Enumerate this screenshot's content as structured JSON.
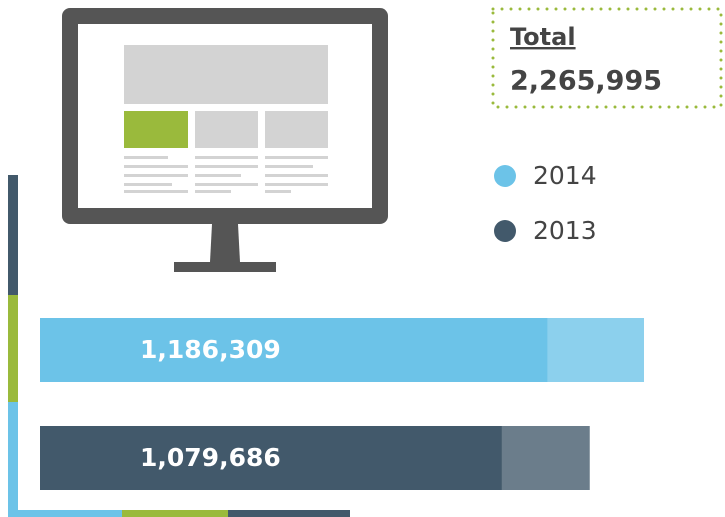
{
  "chart_data": {
    "type": "bar",
    "orientation": "horizontal",
    "total": {
      "label": "Total",
      "value": 2265995,
      "value_label": "2,265,995"
    },
    "series": [
      {
        "name": "2014",
        "color": "#6cc3e8",
        "values": [
          1186309
        ],
        "value_labels": [
          "1,186,309"
        ]
      },
      {
        "name": "2013",
        "color": "#42596b",
        "values": [
          1079686
        ],
        "value_labels": [
          "1,079,686"
        ]
      }
    ]
  }
}
